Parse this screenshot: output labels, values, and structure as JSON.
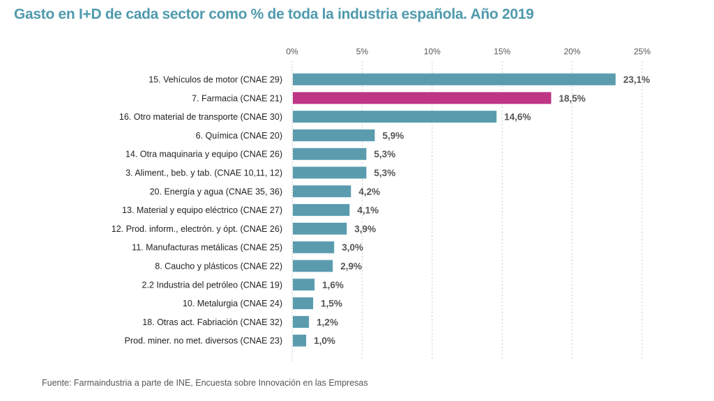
{
  "title": "Gasto en I+D de cada sector como % de toda la industria española. Año 2019",
  "source": "Fuente: Farmaindustria a parte de INE, Encuesta sobre Innovación en las Empresas",
  "colors": {
    "bar": "#5a9cae",
    "highlight": "#be3584",
    "title": "#4f9aad",
    "grid": "#c8c8c8"
  },
  "chart_data": {
    "type": "bar",
    "orientation": "horizontal",
    "title": "Gasto en I+D de cada sector como % de toda la industria española. Año 2019",
    "xlim": [
      0,
      25
    ],
    "x_ticks": [
      0,
      5,
      10,
      15,
      20,
      25
    ],
    "x_tick_labels": [
      "0%",
      "5%",
      "10%",
      "15%",
      "20%",
      "25%"
    ],
    "x_axis_position": "top",
    "grid": "vertical dashed",
    "categories": [
      "15. Vehículos de motor (CNAE 29)",
      "7. Farmacia (CNAE 21)",
      "16. Otro material de transporte (CNAE 30)",
      "6. Química (CNAE 20)",
      "14. Otra maquinaria y equipo (CNAE 26)",
      "3. Aliment., beb. y tab. (CNAE 10,11, 12)",
      "20. Energía y agua (CNAE 35, 36)",
      "13. Material y equipo eléctrico (CNAE 27)",
      "12. Prod. inform., electrón. y ópt. (CNAE 26)",
      "11. Manufacturas metálicas (CNAE 25)",
      "8. Caucho y plásticos (CNAE 22)",
      "2.2 Industria del petróleo (CNAE 19)",
      "10. Metalurgia (CNAE 24)",
      "18. Otras act. Fabriación (CNAE 32)",
      "Prod. miner. no met. diversos (CNAE 23)"
    ],
    "values": [
      23.1,
      18.5,
      14.6,
      5.9,
      5.3,
      5.3,
      4.2,
      4.1,
      3.9,
      3.0,
      2.9,
      1.6,
      1.5,
      1.2,
      1.0
    ],
    "value_labels": [
      "23,1%",
      "18,5%",
      "14,6%",
      "5,9%",
      "5,3%",
      "5,3%",
      "4,2%",
      "4,1%",
      "3,9%",
      "3,0%",
      "2,9%",
      "1,6%",
      "1,5%",
      "1,2%",
      "1,0%"
    ],
    "highlight": "7. Farmacia (CNAE 21)"
  }
}
